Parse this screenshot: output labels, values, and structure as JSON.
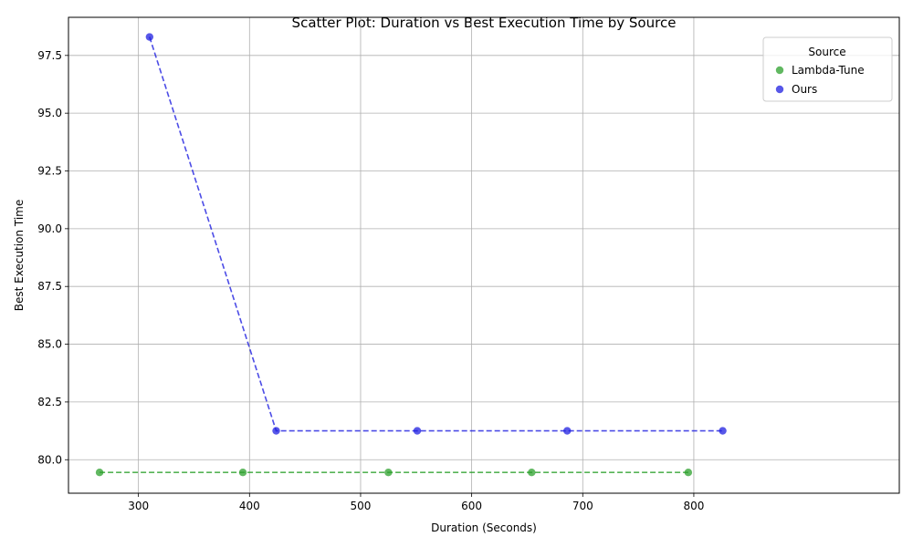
{
  "chart_data": {
    "type": "scatter",
    "title": "Scatter Plot: Duration vs Best Execution Time by Source",
    "xlabel": "Duration (Seconds)",
    "ylabel": "Best Execution Time",
    "xlim": [
      237,
      985
    ],
    "ylim": [
      78.55,
      99.15
    ],
    "xticks": [
      300,
      400,
      500,
      600,
      700,
      800
    ],
    "xtick_labels": [
      "300",
      "400",
      "500",
      "600",
      "700",
      "800"
    ],
    "yticks": [
      80.0,
      82.5,
      85.0,
      87.5,
      90.0,
      92.5,
      95.0,
      97.5
    ],
    "ytick_labels": [
      "80.0",
      "82.5",
      "85.0",
      "87.5",
      "90.0",
      "92.5",
      "95.0",
      "97.5"
    ],
    "grid": true,
    "legend": {
      "title": "Source",
      "position": "top-right"
    },
    "series": [
      {
        "name": "Lambda-Tune",
        "color": "#2ca02c",
        "line_style": "dashed",
        "x": [
          265,
          394,
          525,
          654,
          795
        ],
        "y": [
          79.45,
          79.45,
          79.45,
          79.45,
          79.45
        ]
      },
      {
        "name": "Ours",
        "color": "#1f1fe0",
        "line_style": "dashed",
        "x": [
          310,
          424,
          551,
          686,
          826
        ],
        "y": [
          98.3,
          81.25,
          81.25,
          81.25,
          81.25
        ]
      }
    ]
  }
}
